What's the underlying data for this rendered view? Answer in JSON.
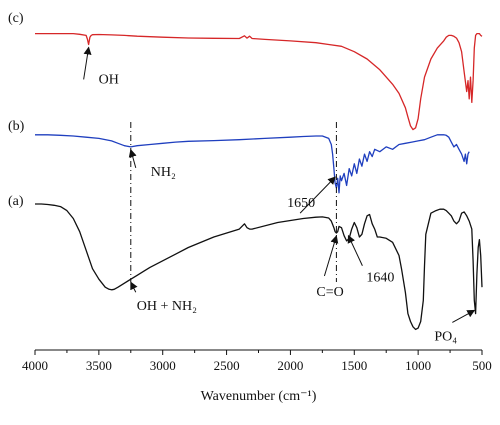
{
  "chart_data": {
    "type": "line",
    "title": "",
    "xlabel": "Wavenumber (cm⁻¹)",
    "ylabel": "",
    "xlim": [
      4000,
      500
    ],
    "x_ticks": [
      "4000",
      "3500",
      "3000",
      "2500",
      "2000",
      "1500",
      "1000",
      "500"
    ],
    "x_reversed": true,
    "grid": false,
    "series": [
      {
        "name": "(c)",
        "color": "#d62728",
        "x": [
          4000,
          3900,
          3800,
          3700,
          3650,
          3600,
          3590,
          3580,
          3570,
          3560,
          3550,
          3500,
          3400,
          3300,
          3200,
          3000,
          2800,
          2600,
          2400,
          2360,
          2340,
          2320,
          2300,
          2200,
          2000,
          1800,
          1700,
          1600,
          1500,
          1400,
          1300,
          1200,
          1150,
          1100,
          1080,
          1060,
          1040,
          1020,
          1000,
          980,
          950,
          900,
          850,
          800,
          780,
          760,
          740,
          720,
          700,
          680,
          660,
          640,
          620,
          610,
          600,
          590,
          580,
          570,
          560,
          550,
          540,
          530,
          520,
          510,
          500
        ],
        "values": [
          96,
          96,
          96,
          96,
          95.6,
          95,
          93,
          90,
          94,
          95,
          95.4,
          95.5,
          95.3,
          95,
          94.6,
          94,
          93.6,
          93.4,
          93.3,
          94.8,
          93.5,
          94.6,
          93.3,
          92.8,
          92,
          91,
          90,
          89,
          86,
          82,
          76,
          68,
          63,
          55,
          50,
          45,
          43,
          44,
          49,
          60,
          72,
          82,
          88,
          92,
          94,
          95,
          95,
          94.5,
          93.5,
          91,
          86,
          75,
          64,
          70,
          60,
          72,
          58,
          70,
          88,
          95,
          96,
          96,
          96,
          95,
          94.5
        ]
      },
      {
        "name": "(b)",
        "color": "#1f3fbf",
        "x": [
          4000,
          3900,
          3800,
          3700,
          3600,
          3500,
          3400,
          3350,
          3300,
          3250,
          3200,
          3100,
          3000,
          2900,
          2800,
          2600,
          2400,
          2200,
          2000,
          1900,
          1800,
          1750,
          1700,
          1680,
          1670,
          1660,
          1650,
          1640,
          1630,
          1620,
          1610,
          1600,
          1580,
          1560,
          1540,
          1520,
          1500,
          1480,
          1460,
          1440,
          1420,
          1400,
          1380,
          1360,
          1340,
          1300,
          1250,
          1200,
          1150,
          1100,
          1050,
          1000,
          950,
          900,
          850,
          800,
          780,
          760,
          740,
          720,
          700,
          680,
          660,
          640,
          630,
          620,
          610,
          600
        ],
        "values": [
          92,
          92,
          91.8,
          91.5,
          91,
          90.5,
          89.5,
          88.5,
          87.5,
          87,
          87.5,
          88,
          88.5,
          89,
          89.3,
          89.6,
          90,
          90.5,
          91,
          91.3,
          91.5,
          91.5,
          90.5,
          88,
          84,
          78,
          72,
          70,
          74,
          68,
          75,
          73,
          76,
          71,
          78,
          75,
          80,
          76,
          82,
          79,
          84,
          81,
          85,
          83,
          86,
          85,
          87,
          86,
          88,
          88.5,
          89,
          89.5,
          90,
          91,
          92,
          92,
          91.8,
          91,
          89,
          87,
          88,
          86,
          84,
          81,
          84,
          80,
          84,
          85
        ]
      },
      {
        "name": "(a)",
        "color": "#111111",
        "x": [
          4000,
          3950,
          3900,
          3850,
          3800,
          3750,
          3700,
          3650,
          3600,
          3550,
          3500,
          3450,
          3420,
          3400,
          3380,
          3350,
          3300,
          3250,
          3200,
          3150,
          3100,
          3000,
          2900,
          2800,
          2600,
          2400,
          2360,
          2340,
          2320,
          2300,
          2100,
          1900,
          1800,
          1750,
          1700,
          1680,
          1660,
          1650,
          1640,
          1630,
          1620,
          1600,
          1580,
          1560,
          1540,
          1520,
          1500,
          1480,
          1460,
          1440,
          1420,
          1400,
          1380,
          1360,
          1340,
          1320,
          1300,
          1250,
          1200,
          1150,
          1130,
          1100,
          1080,
          1060,
          1040,
          1020,
          1000,
          980,
          960,
          950,
          940,
          900,
          860,
          830,
          800,
          780,
          760,
          740,
          720,
          700,
          680,
          660,
          640,
          620,
          600,
          580,
          570,
          560,
          550,
          540,
          530,
          520,
          510,
          500
        ],
        "values": [
          91.5,
          91.5,
          91.3,
          91,
          90.5,
          89,
          86,
          81,
          74,
          67,
          63,
          60,
          59.2,
          59,
          59.2,
          60,
          61.5,
          63,
          64.5,
          66,
          67.5,
          70,
          72.5,
          75,
          79,
          82,
          84,
          82.5,
          82,
          82,
          84.5,
          86,
          86.5,
          86.6,
          86.2,
          85,
          82.5,
          81,
          80.5,
          81,
          83,
          82.5,
          79.5,
          77.5,
          78.5,
          82,
          84.5,
          82.5,
          79,
          80,
          84,
          87,
          87.5,
          84,
          82,
          79,
          79,
          78.5,
          77,
          72,
          67,
          58,
          50,
          47,
          45,
          44,
          44.5,
          47,
          55,
          68,
          80,
          88,
          89,
          89.5,
          89.5,
          89,
          88,
          87,
          85,
          84,
          85,
          88,
          88.5,
          87,
          85,
          82,
          70,
          55,
          50,
          65,
          75,
          78,
          72,
          60
        ]
      }
    ],
    "panel_labels": [
      "(c)",
      "(b)",
      "(a)"
    ],
    "annotations": [
      {
        "text": "OH",
        "x": 3580
      },
      {
        "text": "NH₂",
        "x": 3250
      },
      {
        "text": "1650",
        "x": 1650
      },
      {
        "text": "1640",
        "x": 1640
      },
      {
        "text": "OH + NH₂",
        "x": 3250
      },
      {
        "text": "C=O",
        "x": 1640
      },
      {
        "text": "PO₄",
        "x": 600
      }
    ]
  }
}
